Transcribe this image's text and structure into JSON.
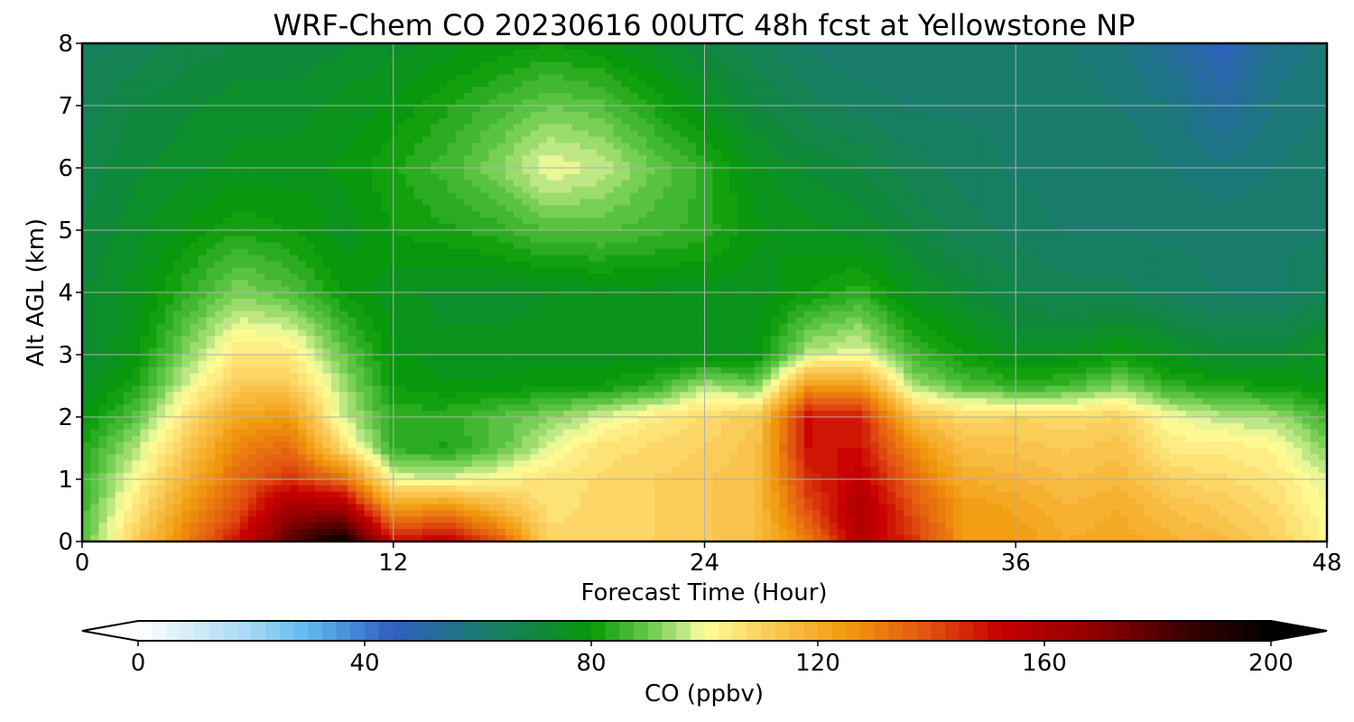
{
  "chart_data": {
    "type": "heatmap",
    "title": "WRF-Chem CO  20230616 00UTC 48h fcst at Yellowstone NP",
    "xlabel": "Forecast Time (Hour)",
    "ylabel": "Alt AGL (km)",
    "xlim": [
      0,
      48
    ],
    "ylim": [
      0,
      8
    ],
    "x_ticks": [
      "0",
      "12",
      "24",
      "36",
      "48"
    ],
    "y_ticks": [
      "0",
      "1",
      "2",
      "3",
      "4",
      "5",
      "6",
      "7",
      "8"
    ],
    "grid": true,
    "colorbar": {
      "label": "CO  (ppbv)",
      "range": [
        0,
        200
      ],
      "step": 2.5,
      "extend": "both",
      "ticks": [
        "0",
        "40",
        "80",
        "120",
        "160",
        "200"
      ],
      "colors": [
        {
          "value": 0,
          "color": "#ffffff"
        },
        {
          "value": 20,
          "color": "#a5d8f5"
        },
        {
          "value": 30,
          "color": "#5fb8ef"
        },
        {
          "value": 45,
          "color": "#2f5fc0"
        },
        {
          "value": 60,
          "color": "#1a7a73"
        },
        {
          "value": 72,
          "color": "#0e8a35"
        },
        {
          "value": 80,
          "color": "#079a07"
        },
        {
          "value": 90,
          "color": "#66c94a"
        },
        {
          "value": 97,
          "color": "#c9ec8c"
        },
        {
          "value": 100,
          "color": "#ffff99"
        },
        {
          "value": 110,
          "color": "#fbd060"
        },
        {
          "value": 125,
          "color": "#f29a0e"
        },
        {
          "value": 140,
          "color": "#e05010"
        },
        {
          "value": 152,
          "color": "#c80000"
        },
        {
          "value": 170,
          "color": "#8a0000"
        },
        {
          "value": 185,
          "color": "#3a0000"
        },
        {
          "value": 200,
          "color": "#000000"
        }
      ]
    },
    "field": {
      "x": [
        0,
        2,
        4,
        6,
        8,
        10,
        12,
        14,
        16,
        18,
        20,
        22,
        24,
        26,
        28,
        30,
        32,
        34,
        36,
        38,
        40,
        42,
        44,
        46,
        48
      ],
      "y": [
        0,
        0.5,
        1,
        1.5,
        2,
        2.5,
        3,
        4,
        5,
        6,
        7,
        8
      ],
      "values": [
        [
          88,
          110,
          130,
          150,
          180,
          198,
          150,
          155,
          140,
          108,
          108,
          110,
          112,
          115,
          130,
          158,
          145,
          125,
          125,
          120,
          122,
          118,
          116,
          110,
          102
        ],
        [
          86,
          105,
          125,
          140,
          165,
          165,
          125,
          130,
          118,
          107,
          108,
          110,
          112,
          115,
          140,
          160,
          140,
          125,
          122,
          118,
          120,
          115,
          112,
          108,
          100
        ],
        [
          84,
          100,
          118,
          135,
          145,
          135,
          100,
          98,
          102,
          106,
          108,
          110,
          112,
          115,
          145,
          155,
          135,
          120,
          118,
          115,
          117,
          110,
          108,
          105,
          98
        ],
        [
          82,
          95,
          112,
          130,
          135,
          108,
          84,
          82,
          88,
          98,
          106,
          108,
          110,
          114,
          150,
          150,
          128,
          115,
          114,
          112,
          114,
          104,
          104,
          102,
          92
        ],
        [
          78,
          88,
          106,
          122,
          125,
          98,
          84,
          84,
          88,
          92,
          98,
          104,
          108,
          112,
          150,
          148,
          115,
          108,
          110,
          108,
          110,
          100,
          96,
          94,
          86
        ],
        [
          74,
          82,
          98,
          112,
          112,
          95,
          80,
          78,
          78,
          80,
          80,
          84,
          95,
          90,
          125,
          125,
          95,
          88,
          84,
          86,
          92,
          84,
          82,
          80,
          78
        ],
        [
          72,
          78,
          92,
          105,
          105,
          90,
          78,
          76,
          76,
          76,
          76,
          76,
          76,
          78,
          96,
          100,
          86,
          80,
          76,
          76,
          80,
          76,
          72,
          72,
          76
        ],
        [
          72,
          76,
          84,
          92,
          88,
          80,
          76,
          74,
          74,
          75,
          76,
          76,
          76,
          76,
          80,
          84,
          76,
          72,
          68,
          66,
          66,
          64,
          62,
          62,
          66
        ],
        [
          70,
          74,
          78,
          82,
          80,
          76,
          80,
          82,
          84,
          88,
          88,
          86,
          84,
          78,
          76,
          74,
          70,
          66,
          64,
          62,
          62,
          62,
          62,
          62,
          62
        ],
        [
          68,
          72,
          74,
          76,
          76,
          78,
          82,
          86,
          92,
          100,
          97,
          90,
          84,
          76,
          72,
          70,
          66,
          64,
          62,
          62,
          62,
          60,
          58,
          60,
          62
        ],
        [
          66,
          70,
          72,
          74,
          74,
          76,
          78,
          82,
          86,
          90,
          88,
          82,
          76,
          70,
          66,
          64,
          62,
          62,
          62,
          62,
          60,
          58,
          52,
          58,
          60
        ],
        [
          64,
          66,
          68,
          70,
          70,
          72,
          74,
          76,
          78,
          80,
          78,
          74,
          70,
          66,
          62,
          60,
          60,
          60,
          60,
          60,
          58,
          52,
          46,
          56,
          58
        ]
      ]
    }
  }
}
